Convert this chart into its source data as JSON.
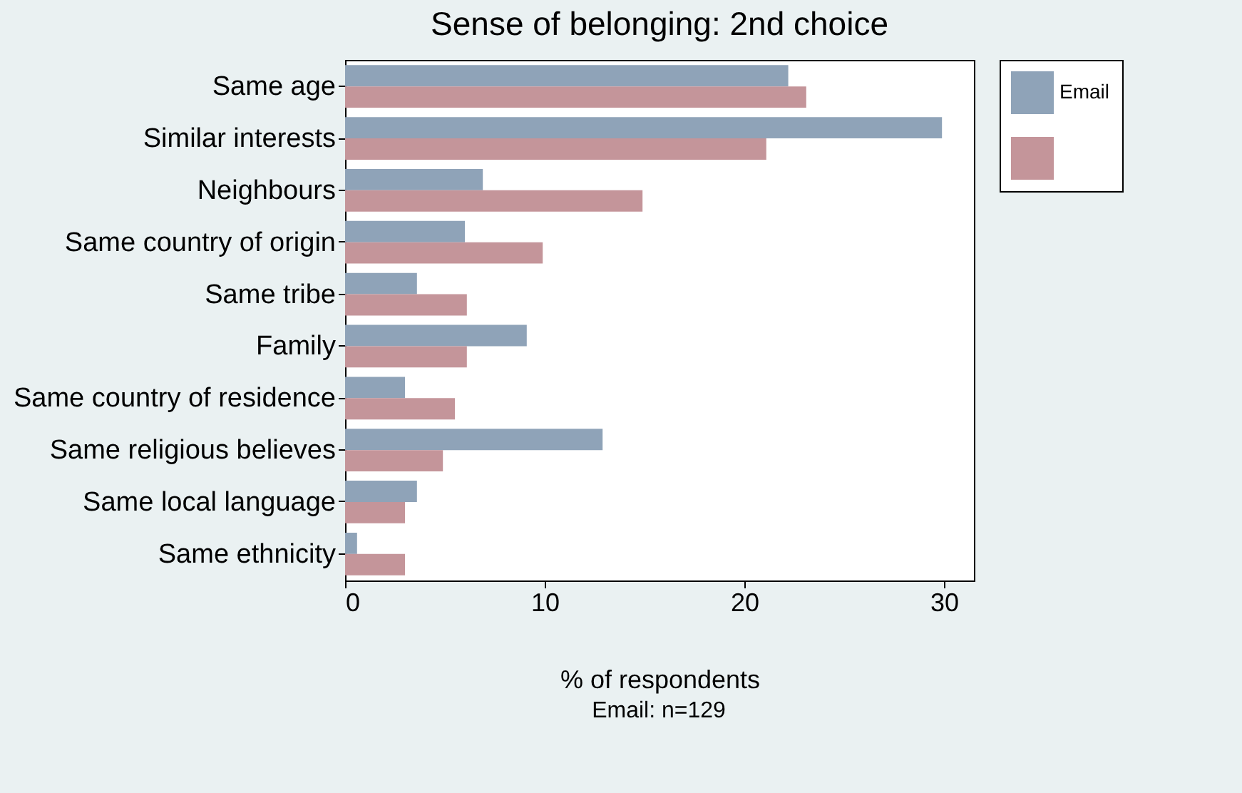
{
  "chart_data": {
    "type": "bar",
    "orientation": "horizontal",
    "title": "Sense of belonging: 2nd choice",
    "xlabel": "% of respondents",
    "categories": [
      "Same age",
      "Similar interests",
      "Neighbours",
      "Same country of origin",
      "Same tribe",
      "Family",
      "Same country of residence",
      "Same religious believes",
      "Same local language",
      "Same ethnicity"
    ],
    "series": [
      {
        "name": "Email",
        "color": "#8fa3b8",
        "values": [
          22.2,
          29.9,
          6.9,
          6.0,
          3.6,
          9.1,
          3.0,
          12.9,
          3.6,
          0.6
        ]
      },
      {
        "color": "#c4959a",
        "values": [
          23.1,
          21.1,
          14.9,
          9.9,
          6.1,
          6.1,
          5.5,
          4.9,
          3.0,
          3.0
        ]
      }
    ],
    "xlim": [
      0,
      31.5
    ],
    "xticks": [
      0,
      10,
      20,
      30
    ],
    "legend": "right",
    "annotations": [
      "Email: n=129"
    ]
  }
}
